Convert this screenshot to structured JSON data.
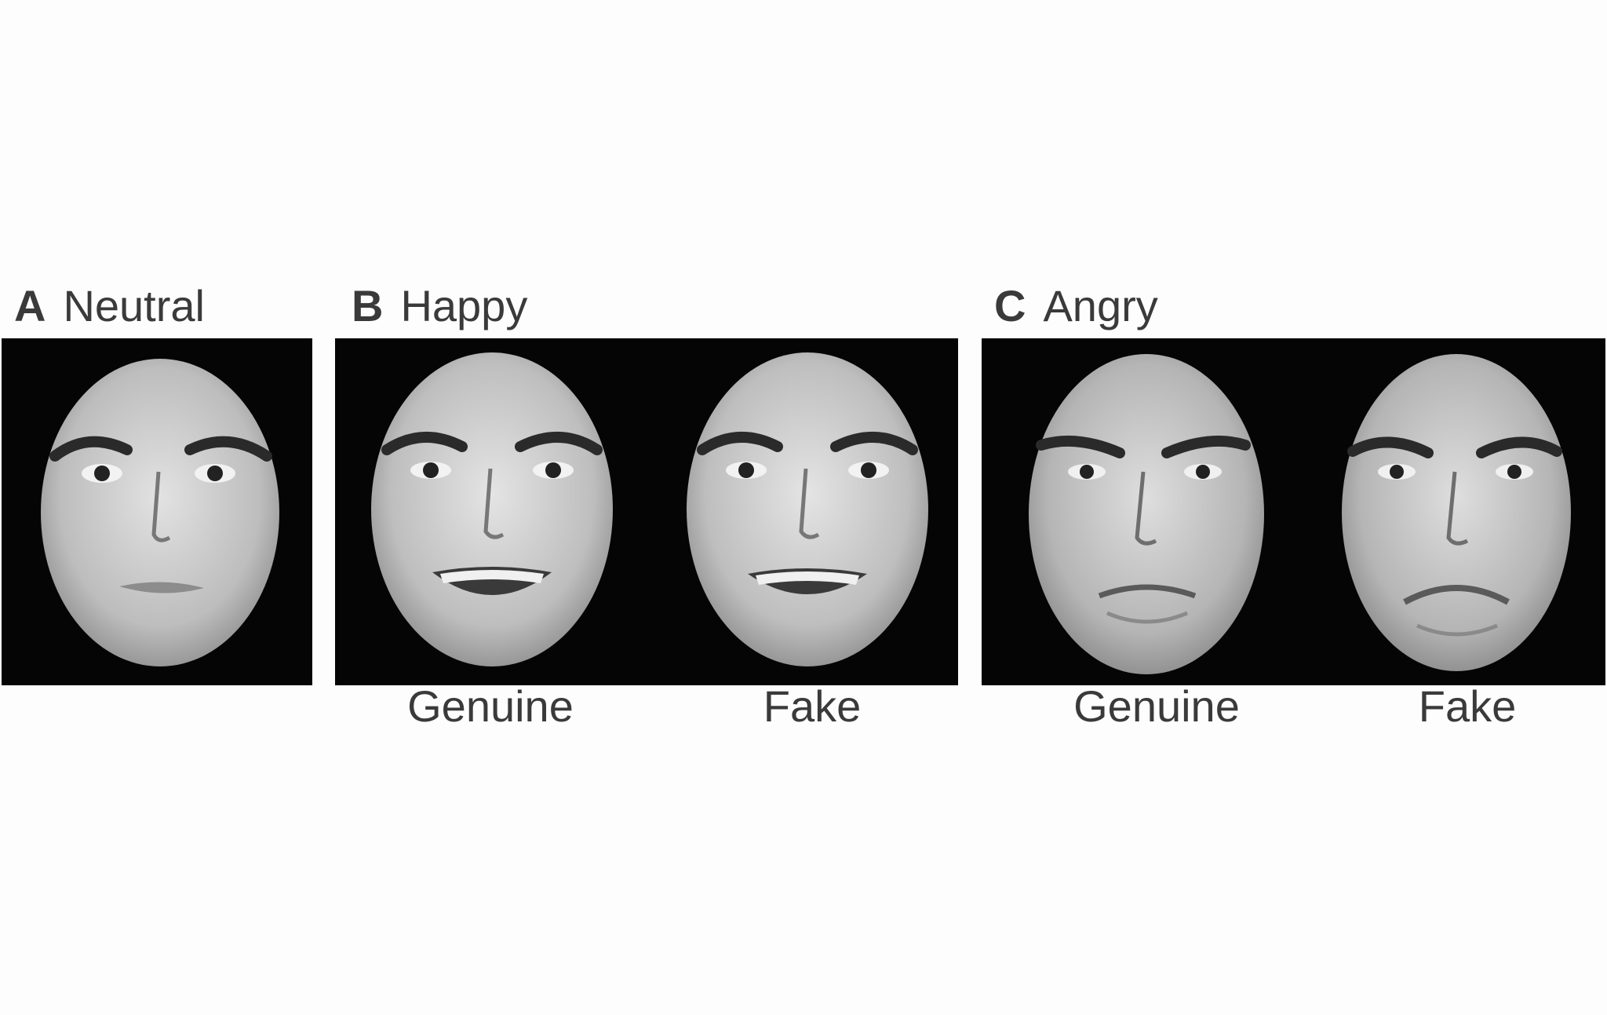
{
  "panels": [
    {
      "letter": "A",
      "title": "Neutral",
      "captions": []
    },
    {
      "letter": "B",
      "title": "Happy",
      "captions": [
        "Genuine",
        "Fake"
      ]
    },
    {
      "letter": "C",
      "title": "Angry",
      "captions": [
        "Genuine",
        "Fake"
      ]
    }
  ],
  "faces": [
    {
      "expression": "neutral"
    },
    {
      "expression": "happy-genuine"
    },
    {
      "expression": "happy-fake"
    },
    {
      "expression": "angry-genuine"
    },
    {
      "expression": "angry-fake"
    }
  ]
}
